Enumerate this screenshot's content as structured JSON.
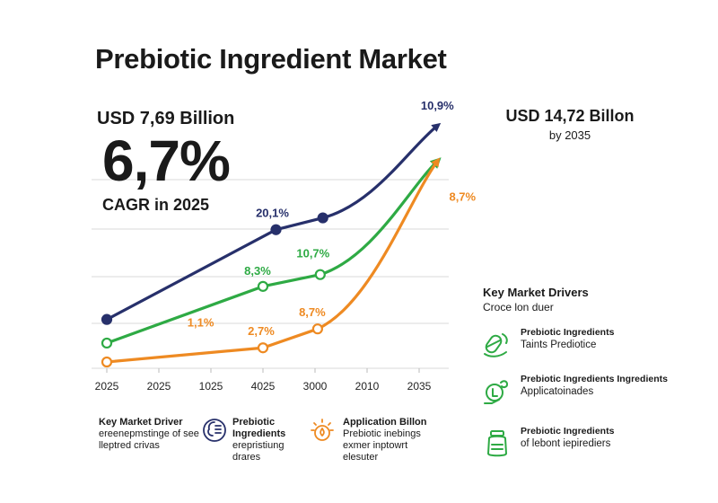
{
  "header": {
    "title": "Prebiotic Ingredient Market",
    "start_value": "USD 7,69 Billion",
    "cagr_value": "6,7%",
    "cagr_label": "CAGR in 2025",
    "end_value": "USD 14,72 Billon",
    "end_year": "by 2035"
  },
  "chart_data": {
    "type": "line",
    "title": "Prebiotic Ingredient Market",
    "categories": [
      "2025",
      "2025",
      "1025",
      "4025",
      "3000",
      "2010",
      "2035"
    ],
    "ylim": [
      0,
      100
    ],
    "grid": true,
    "series": [
      {
        "color": "#27306b",
        "x": [
          0,
          3.25,
          4.15,
          6.35
        ],
        "y": [
          18,
          56,
          61,
          100
        ],
        "markers": [
          0,
          1,
          2
        ],
        "labels": [
          {
            "index": 1,
            "text": "20,1%"
          },
          {
            "index": 3,
            "text": "10,9%"
          }
        ]
      },
      {
        "color": "#2eaa44",
        "x": [
          0,
          3.0,
          4.1,
          6.35
        ],
        "y": [
          8,
          32,
          37,
          85
        ],
        "markers": [
          0,
          1,
          2
        ],
        "labels": [
          {
            "index": 1,
            "text": "8,3%"
          },
          {
            "index": 2,
            "text": "10,7%"
          }
        ]
      },
      {
        "color": "#ee8a22",
        "x": [
          0,
          3.0,
          4.05,
          6.35
        ],
        "y": [
          0,
          6,
          14,
          85
        ],
        "markers": [
          0,
          1,
          2
        ],
        "labels": [
          {
            "index": 1,
            "text": "2,7%"
          },
          {
            "index": 2,
            "text": "8,7%"
          },
          {
            "index": 3,
            "text": "8,7%"
          }
        ],
        "extra_labels": [
          {
            "x": 1.7,
            "y": 9,
            "text": "1,1%"
          }
        ]
      }
    ]
  },
  "drivers": {
    "heading": "Key Market Drivers",
    "subheading": "Croce lon duer",
    "items": [
      {
        "title": "Prebiotic Ingredients",
        "subtitle": "Taints Prediotice",
        "icon": "capsule-icon"
      },
      {
        "title": "Prebiotic Ingredients Ingredients",
        "subtitle": "Applicatoinades",
        "icon": "coin-hand-icon"
      },
      {
        "title": "Prebiotic Ingredients",
        "subtitle": "of lebont iepirediers",
        "icon": "jar-icon"
      }
    ]
  },
  "bottom": {
    "col1": {
      "title": "Key Market Driver",
      "text": "ereenepmstinge of see lleptred crivas"
    },
    "col2": {
      "title": "Prebiotic Ingredients",
      "text": "erepristiung drares",
      "icon": "brain-chart-icon"
    },
    "col3": {
      "title": "Application Billon",
      "text": "Prebiotic inebings exmer inptowrt elesuter",
      "icon": "sun-drop-icon"
    }
  },
  "colors": {
    "navy": "#27306b",
    "green": "#2eaa44",
    "orange": "#ee8a22",
    "grid": "#d9d9d9"
  }
}
